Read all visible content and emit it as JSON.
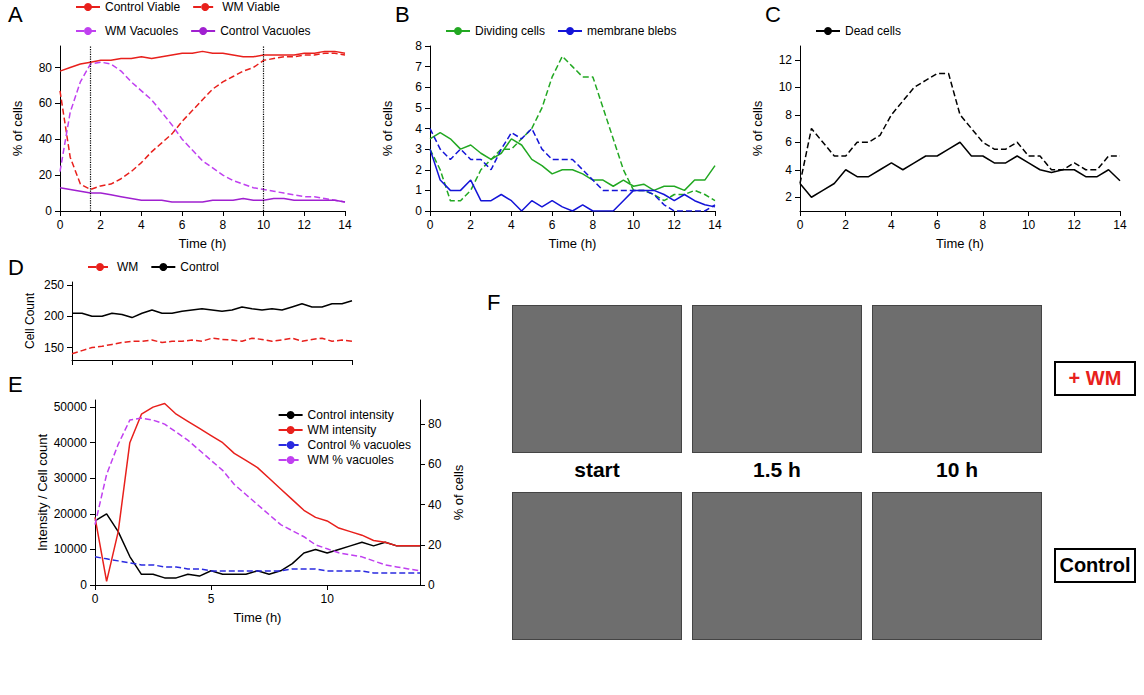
{
  "chart_data": [
    {
      "panel": "A",
      "type": "line",
      "x_label": "Time (h)",
      "y_label": "% of cells",
      "x": [
        0,
        0.5,
        1,
        1.5,
        2,
        2.5,
        3,
        3.5,
        4,
        4.5,
        5,
        5.5,
        6,
        6.5,
        7,
        7.5,
        8,
        8.5,
        9,
        9.5,
        10,
        10.5,
        11,
        11.5,
        12,
        12.5,
        13,
        13.5,
        14
      ],
      "xlim": [
        0,
        14
      ],
      "xticks": [
        0,
        2,
        4,
        6,
        8,
        10,
        12,
        14
      ],
      "ylim": [
        0,
        92
      ],
      "yticks": [
        0,
        20,
        40,
        60,
        80
      ],
      "grid": false,
      "legend": "top",
      "vlines": [
        1.5,
        10
      ],
      "series": [
        {
          "name": "Control Viable",
          "color": "#e8201c",
          "line_style": "solid",
          "values": [
            78,
            80,
            82,
            83,
            84,
            84,
            85,
            85,
            86,
            85,
            86,
            87,
            88,
            88,
            89,
            88,
            88,
            87,
            86,
            86,
            87,
            87,
            87,
            87,
            88,
            88,
            89,
            89,
            88
          ]
        },
        {
          "name": "WM Viable",
          "color": "#e8201c",
          "line_style": "dashed",
          "values": [
            67,
            30,
            15,
            12,
            14,
            15,
            18,
            22,
            27,
            33,
            38,
            43,
            50,
            56,
            62,
            68,
            72,
            75,
            78,
            80,
            84,
            85,
            86,
            86,
            87,
            87,
            88,
            88,
            87
          ]
        },
        {
          "name": "WM Vacuoles",
          "color": "#c040f0",
          "line_style": "dashed",
          "values": [
            22,
            55,
            72,
            82,
            83,
            82,
            78,
            72,
            67,
            62,
            55,
            48,
            40,
            34,
            28,
            24,
            20,
            17,
            15,
            13,
            12,
            11,
            10,
            9,
            8,
            8,
            7,
            6,
            5
          ]
        },
        {
          "name": "Control Vacuoles",
          "color": "#a020d0",
          "line_style": "solid",
          "values": [
            13,
            12,
            11,
            10,
            10,
            9,
            8,
            7,
            6,
            6,
            6,
            5,
            5,
            5,
            5,
            6,
            6,
            6,
            7,
            6,
            6,
            7,
            7,
            6,
            6,
            6,
            6,
            6,
            5
          ]
        }
      ]
    },
    {
      "panel": "B",
      "type": "line",
      "x_label": "Time (h)",
      "y_label": "% of cells",
      "x": [
        0,
        0.5,
        1,
        1.5,
        2,
        2.5,
        3,
        3.5,
        4,
        4.5,
        5,
        5.5,
        6,
        6.5,
        7,
        7.5,
        8,
        8.5,
        9,
        9.5,
        10,
        10.5,
        11,
        11.5,
        12,
        12.5,
        13,
        13.5,
        14
      ],
      "xlim": [
        0,
        14
      ],
      "xticks": [
        0,
        2,
        4,
        6,
        8,
        10,
        12,
        14
      ],
      "ylim": [
        0,
        8
      ],
      "yticks": [
        0,
        1,
        2,
        3,
        4,
        5,
        6,
        7,
        8
      ],
      "grid": false,
      "legend": "top",
      "series": [
        {
          "name": "Dividing cells",
          "color": "#22a822",
          "line_style": "solid",
          "values": [
            3.5,
            3.8,
            3.5,
            3,
            3.2,
            2.8,
            2.5,
            2.8,
            3.5,
            3.2,
            2.5,
            2.2,
            1.8,
            2,
            2,
            1.8,
            1.5,
            1.5,
            1.2,
            1.5,
            1.2,
            1.3,
            1,
            1.2,
            1.2,
            1,
            1.5,
            1.5,
            2.2
          ]
        },
        {
          "name": "Dividing cells",
          "color": "#22a822",
          "line_style": "dashed",
          "values": [
            3,
            2,
            0.5,
            0.5,
            1,
            2,
            2.5,
            3,
            3,
            3.5,
            4,
            5,
            6.5,
            7.5,
            7,
            6.5,
            6.5,
            5,
            3.5,
            2,
            1,
            1,
            0.8,
            0.5,
            0.8,
            0.8,
            1,
            0.8,
            0.5
          ]
        },
        {
          "name": "membrane blebs",
          "color": "#1414d8",
          "line_style": "solid",
          "values": [
            3,
            1.5,
            1,
            1,
            1.5,
            0.5,
            0.5,
            0.8,
            0.5,
            0,
            0.5,
            0.2,
            0.5,
            0.2,
            0,
            0.3,
            0,
            0,
            0,
            0.5,
            1,
            1,
            1,
            0.8,
            0.5,
            0.8,
            0.5,
            0.3,
            0.2
          ]
        },
        {
          "name": "membrane blebs",
          "color": "#1414d8",
          "line_style": "dashed",
          "values": [
            4,
            3,
            2.5,
            3,
            2.5,
            2.5,
            2,
            3,
            3.8,
            3.5,
            4,
            3,
            2.5,
            2.5,
            2.5,
            2,
            1.5,
            1,
            1,
            1,
            1,
            1,
            0.8,
            0.3,
            0,
            0,
            0,
            0,
            0.3
          ]
        }
      ]
    },
    {
      "panel": "C",
      "type": "line",
      "x_label": "Time (h)",
      "y_label": "% of cells",
      "x": [
        0,
        0.5,
        1,
        1.5,
        2,
        2.5,
        3,
        3.5,
        4,
        4.5,
        5,
        5.5,
        6,
        6.5,
        7,
        7.5,
        8,
        8.5,
        9,
        9.5,
        10,
        10.5,
        11,
        11.5,
        12,
        12.5,
        13,
        13.5,
        14
      ],
      "xlim": [
        0,
        14
      ],
      "xticks": [
        0,
        2,
        4,
        6,
        8,
        10,
        12,
        14
      ],
      "ylim": [
        1,
        13
      ],
      "yticks": [
        2,
        4,
        6,
        8,
        10,
        12
      ],
      "grid": false,
      "legend": "top",
      "series": [
        {
          "name": "Dead cells",
          "color": "#000000",
          "line_style": "solid",
          "values": [
            3,
            2,
            2.5,
            3,
            4,
            3.5,
            3.5,
            4,
            4.5,
            4,
            4.5,
            5,
            5,
            5.5,
            6,
            5,
            5,
            4.5,
            4.5,
            5,
            4.5,
            4,
            3.8,
            4,
            4,
            3.5,
            3.5,
            4,
            3.2
          ]
        },
        {
          "name": "Dead cells",
          "color": "#000000",
          "line_style": "dashed",
          "values": [
            3,
            7,
            6,
            5,
            5,
            6,
            6,
            6.5,
            8,
            9,
            10,
            10.5,
            11,
            11,
            8,
            7,
            6,
            5.5,
            5.5,
            6,
            5,
            5,
            4,
            4,
            4.5,
            4,
            4,
            5,
            5
          ]
        }
      ]
    },
    {
      "panel": "D",
      "type": "line",
      "y_label": "Cell Count",
      "x": [
        0,
        0.5,
        1,
        1.5,
        2,
        2.5,
        3,
        3.5,
        4,
        4.5,
        5,
        5.5,
        6,
        6.5,
        7,
        7.5,
        8,
        8.5,
        9,
        9.5,
        10,
        10.5,
        11,
        11.5,
        12,
        12.5,
        13,
        13.5,
        14
      ],
      "xlim": [
        0,
        14
      ],
      "xticks": [
        0,
        2,
        4,
        6,
        8,
        10,
        12,
        14
      ],
      "ylim": [
        130,
        255
      ],
      "yticks": [
        150,
        200,
        250
      ],
      "grid": false,
      "legend": "top",
      "tick_labels": "y",
      "series": [
        {
          "name": "WM",
          "color": "#e8201c",
          "line_style": "dashed",
          "values": [
            140,
            145,
            150,
            152,
            155,
            158,
            160,
            160,
            162,
            158,
            160,
            160,
            162,
            160,
            165,
            163,
            162,
            160,
            165,
            163,
            160,
            162,
            165,
            160,
            163,
            165,
            160,
            162,
            160
          ]
        },
        {
          "name": "Control",
          "color": "#000000",
          "line_style": "solid",
          "values": [
            205,
            205,
            200,
            200,
            205,
            203,
            198,
            205,
            210,
            205,
            205,
            208,
            210,
            212,
            210,
            208,
            210,
            215,
            212,
            210,
            212,
            210,
            215,
            220,
            215,
            215,
            220,
            220,
            225
          ]
        }
      ]
    },
    {
      "panel": "E",
      "type": "line",
      "x_label": "Time (h)",
      "y_label": "Intensity / Cell count",
      "y2_label": "% of cells",
      "x": [
        0,
        0.5,
        1,
        1.5,
        2,
        2.5,
        3,
        3.5,
        4,
        4.5,
        5,
        5.5,
        6,
        6.5,
        7,
        7.5,
        8,
        8.5,
        9,
        9.5,
        10,
        10.5,
        11,
        11.5,
        12,
        12.5,
        13,
        13.5,
        14
      ],
      "xlim": [
        0,
        14
      ],
      "xticks": [
        0,
        5,
        10
      ],
      "ylim": [
        0,
        52000
      ],
      "yticks": [
        0,
        10000,
        20000,
        30000,
        40000,
        50000
      ],
      "y2lim": [
        0,
        92
      ],
      "y2ticks": [
        0,
        20,
        40,
        60,
        80
      ],
      "grid": false,
      "legend": "top-right",
      "series": [
        {
          "name": "Control intensity",
          "color": "#000000",
          "line_style": "solid",
          "values": [
            18000,
            20000,
            15000,
            8000,
            3000,
            3000,
            2000,
            2000,
            3000,
            2500,
            4000,
            3000,
            3000,
            3000,
            4000,
            3000,
            4000,
            6000,
            9000,
            10000,
            9000,
            10000,
            11000,
            12000,
            11000,
            12000,
            11000,
            11000,
            11000
          ]
        },
        {
          "name": "WM intensity",
          "color": "#e8201c",
          "line_style": "solid",
          "values": [
            19000,
            1000,
            15000,
            40000,
            48000,
            50000,
            51000,
            48000,
            46000,
            44000,
            42000,
            40000,
            37000,
            35000,
            33000,
            30000,
            27000,
            24000,
            21000,
            19000,
            18000,
            16000,
            15000,
            14000,
            12500,
            12000,
            11000,
            11000,
            11000
          ]
        },
        {
          "name": "Control % vacuoles",
          "color": "#2a2ae0",
          "line_style": "dashed",
          "axis": "y2",
          "values": [
            14,
            13,
            12,
            11,
            10,
            10,
            9,
            9,
            8,
            8,
            7,
            7,
            7,
            7,
            7,
            7,
            7,
            8,
            8,
            8,
            7,
            7,
            7,
            7,
            6,
            6,
            6,
            6,
            6
          ]
        },
        {
          "name": "WM % vacuoles",
          "color": "#c040f0",
          "line_style": "dashed",
          "axis": "y2",
          "values": [
            30,
            55,
            70,
            82,
            83,
            82,
            80,
            76,
            72,
            67,
            62,
            57,
            50,
            45,
            40,
            35,
            30,
            27,
            24,
            20,
            18,
            16,
            15,
            14,
            12,
            10,
            9,
            8,
            7
          ]
        }
      ]
    }
  ],
  "image_panel": {
    "panel": "F",
    "columns": [
      "start",
      "1.5 h",
      "10 h"
    ],
    "rows": [
      "+ WM",
      "Control"
    ]
  }
}
